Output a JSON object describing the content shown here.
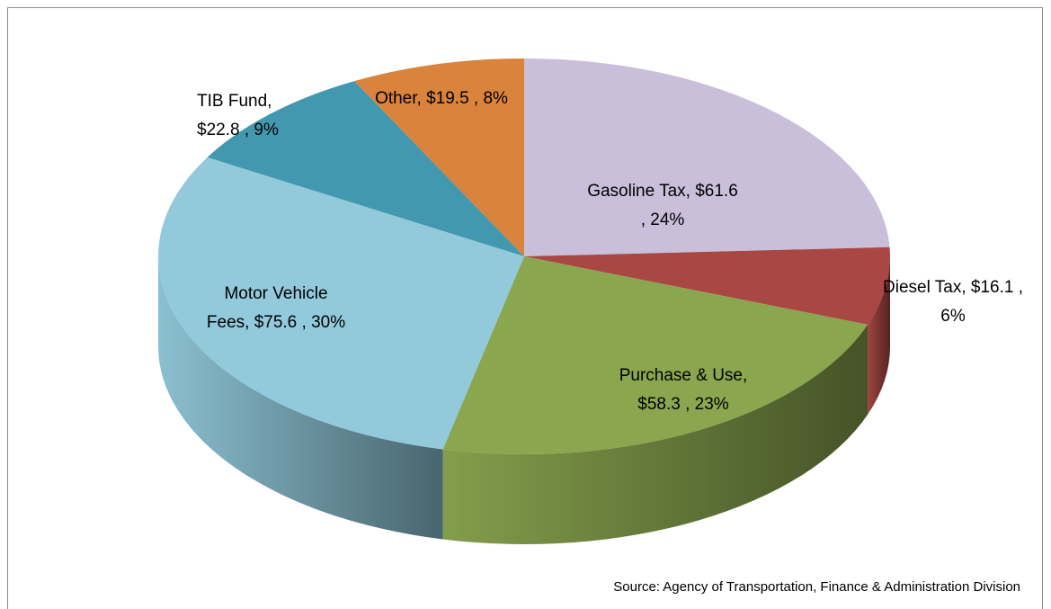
{
  "chart_data": {
    "type": "pie3d",
    "categories": [
      "Gasoline Tax",
      "Diesel Tax",
      "Purchase & Use",
      "Motor Vehicle Fees",
      "TIB Fund",
      "Other"
    ],
    "values": [
      61.6,
      16.1,
      58.3,
      75.6,
      22.8,
      19.5
    ],
    "data_labels": [
      [
        "Gasoline Tax, $61.6",
        ", 24%"
      ],
      [
        "Diesel Tax, $16.1 ,",
        "6%"
      ],
      [
        "Purchase & Use,",
        "$58.3 , 23%"
      ],
      [
        "Motor Vehicle",
        "Fees, $75.6 , 30%"
      ],
      [
        "TIB Fund,",
        "$22.8 , 9%"
      ],
      [
        "Other, $19.5 , 8%"
      ]
    ],
    "colors": [
      "#c9bfdb",
      "#a84744",
      "#8aa64f",
      "#92cadc",
      "#4298ae",
      "#d9833c"
    ],
    "source": "Source: Agency of Transportation, Finance & Administration Division"
  }
}
